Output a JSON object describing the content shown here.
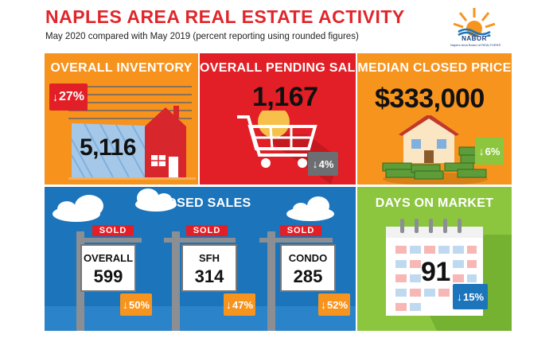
{
  "header": {
    "title": "NAPLES AREA REAL ESTATE ACTIVITY",
    "subtitle": "May 2020 compared with May 2019 (percent reporting using rounded figures)",
    "logo": {
      "name": "NABOR",
      "tagline": "Naples Area Board of REALTORS®"
    }
  },
  "inventory": {
    "title": "OVERALL INVENTORY",
    "value": "5,116",
    "change": "27%",
    "direction": "down",
    "badge_color": "#e21f26"
  },
  "pending": {
    "title": "OVERALL PENDING SALES",
    "value": "1,167",
    "change": "4%",
    "direction": "down",
    "badge_color": "#6d6e71"
  },
  "median": {
    "title": "MEDIAN CLOSED PRICE",
    "value": "$333,000",
    "change": "6%",
    "direction": "down",
    "badge_color": "#8cc63f"
  },
  "closed": {
    "title": "CLOSED SALES",
    "sold_label": "SOLD",
    "items": [
      {
        "label": "OVERALL",
        "value": "599",
        "change": "50%",
        "direction": "down"
      },
      {
        "label": "SFH",
        "value": "314",
        "change": "47%",
        "direction": "down"
      },
      {
        "label": "CONDO",
        "value": "285",
        "change": "52%",
        "direction": "down"
      }
    ],
    "badge_color": "#f7941d"
  },
  "days": {
    "title": "DAYS ON MARKET",
    "value": "91",
    "change": "15%",
    "direction": "down",
    "badge_color": "#1c74bb"
  },
  "colors": {
    "title_red": "#e0262b",
    "orange": "#f7931d",
    "red": "#e21f26",
    "blue": "#1c74bb",
    "green": "#8cc63f"
  }
}
